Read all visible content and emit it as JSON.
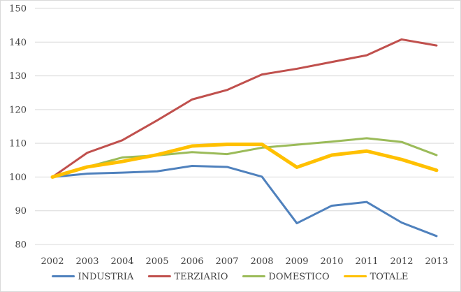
{
  "chart_data": {
    "type": "line",
    "title": "",
    "xlabel": "",
    "ylabel": "",
    "categories": [
      "2002",
      "2003",
      "2004",
      "2005",
      "2006",
      "2007",
      "2008",
      "2009",
      "2010",
      "2011",
      "2012",
      "2013"
    ],
    "ylim": [
      80,
      150
    ],
    "yticks": [
      80,
      90,
      100,
      110,
      120,
      130,
      140,
      150
    ],
    "grid": true,
    "legend_position": "bottom",
    "series": [
      {
        "name": "INDUSTRIA",
        "color": "#4f81bd",
        "width": 3,
        "values": [
          100,
          101.0,
          101.3,
          101.7,
          103.3,
          103.0,
          100.1,
          86.3,
          91.5,
          92.6,
          86.5,
          82.5
        ]
      },
      {
        "name": "TERZIARIO",
        "color": "#c0504d",
        "width": 3,
        "values": [
          100,
          107.2,
          110.9,
          116.8,
          123.0,
          125.8,
          130.4,
          132.1,
          134.1,
          136.1,
          140.8,
          139.0
        ]
      },
      {
        "name": "DOMESTICO",
        "color": "#9bbb59",
        "width": 3,
        "values": [
          100,
          103.0,
          105.8,
          106.4,
          107.4,
          106.8,
          108.7,
          109.6,
          110.5,
          111.5,
          110.4,
          106.5
        ]
      },
      {
        "name": "TOTALE",
        "color": "#ffc000",
        "width": 5,
        "values": [
          100,
          103.0,
          104.6,
          106.6,
          109.2,
          109.7,
          109.7,
          102.9,
          106.5,
          107.7,
          105.2,
          102.0
        ]
      }
    ]
  }
}
